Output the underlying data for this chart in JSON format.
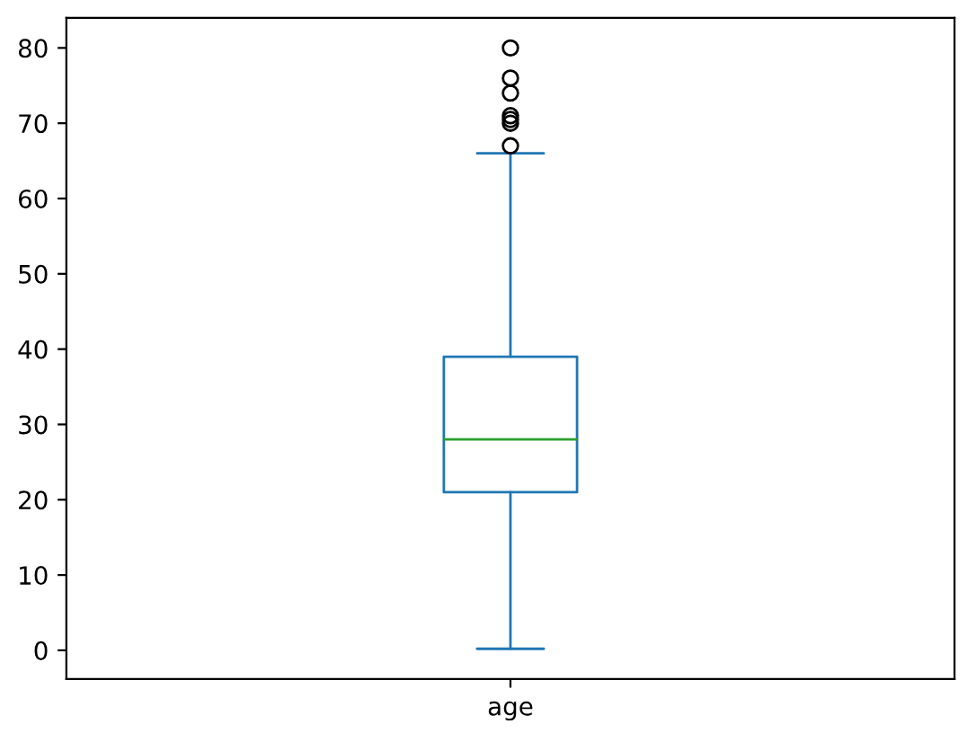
{
  "chart_data": {
    "type": "box",
    "categories": [
      "age"
    ],
    "series": [
      {
        "color": "#1f77b4",
        "boxes": [
          {
            "low": 0.2,
            "q1": 21,
            "median": 28,
            "q3": 39,
            "high": 66,
            "outliers": [
              67,
              70,
              70.5,
              71,
              74,
              76,
              80
            ]
          }
        ]
      }
    ],
    "ylim": [
      -3.8,
      84
    ],
    "yticks": [
      0,
      10,
      20,
      30,
      40,
      50,
      60,
      70,
      80
    ],
    "grid": false
  }
}
